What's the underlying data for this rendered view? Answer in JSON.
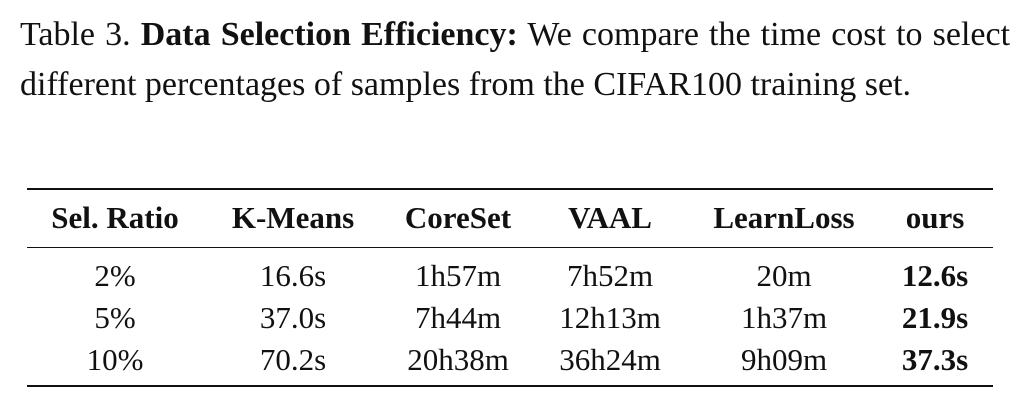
{
  "caption": {
    "label": "Table 3.",
    "title": "Data Selection Efficiency:",
    "text": "We compare the time cost to select different percentages of samples from the CIFAR100 training set."
  },
  "table": {
    "headers": [
      "Sel. Ratio",
      "K-Means",
      "CoreSet",
      "VAAL",
      "LearnLoss",
      "ours"
    ],
    "rows": [
      [
        "2%",
        "16.6s",
        "1h57m",
        "7h52m",
        "20m",
        "12.6s"
      ],
      [
        "5%",
        "37.0s",
        "7h44m",
        "12h13m",
        "1h37m",
        "21.9s"
      ],
      [
        "10%",
        "70.2s",
        "20h38m",
        "36h24m",
        "9h09m",
        "37.3s"
      ]
    ]
  }
}
